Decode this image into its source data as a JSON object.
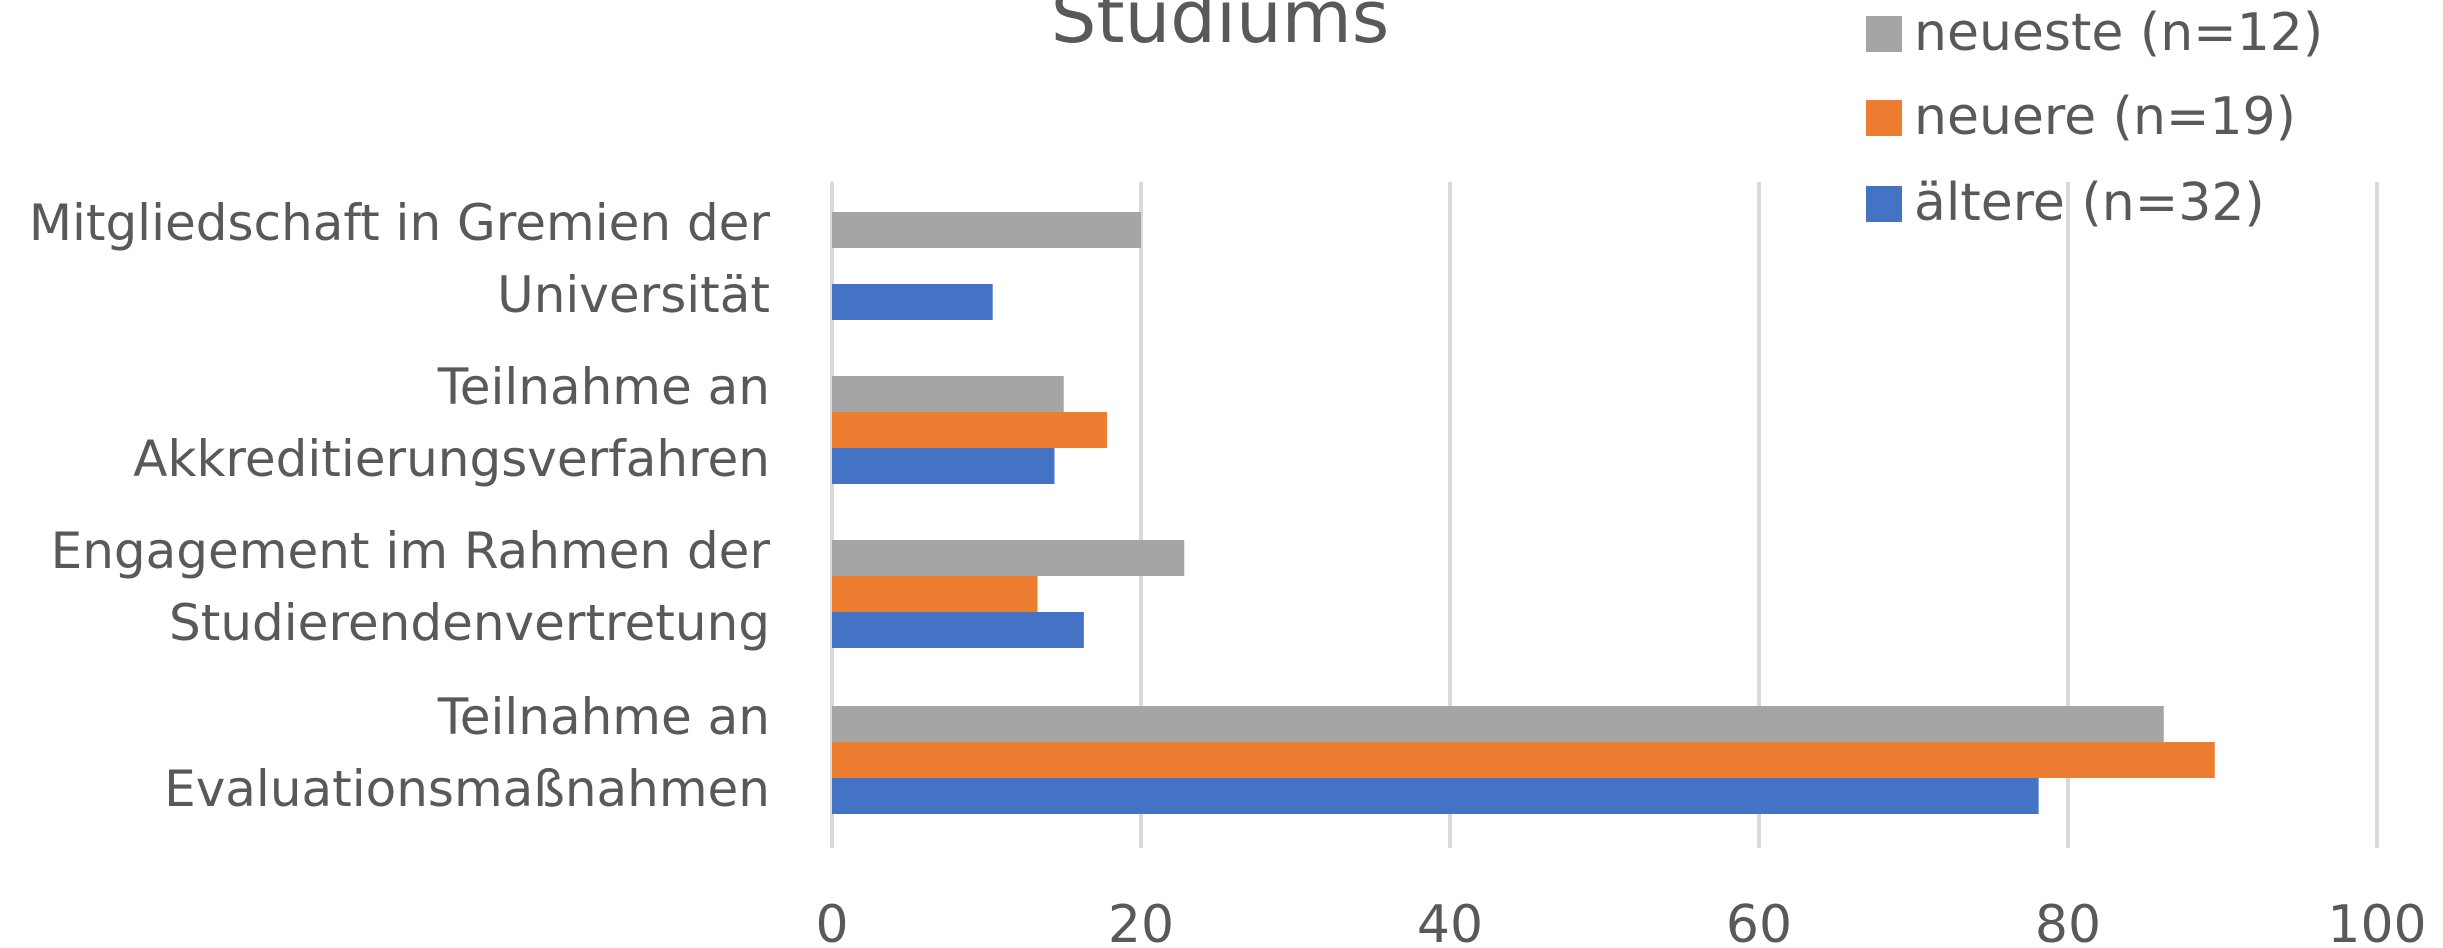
{
  "chart_data": {
    "type": "bar",
    "orientation": "horizontal",
    "title": "Studiums",
    "categories": [
      [
        "Mitgliedschaft in Gremien der",
        "Universität"
      ],
      [
        "Teilnahme an",
        "Akkreditierungsverfahren"
      ],
      [
        "Engagement im Rahmen der",
        "Studierendenvertretung"
      ],
      [
        "Teilnahme an",
        "Evaluationsmaßnahmen"
      ]
    ],
    "series": [
      {
        "name": "neueste (n=12)",
        "color": "#a5a5a5",
        "values": [
          20,
          15,
          22.8,
          86.2
        ]
      },
      {
        "name": "neuere (n=19)",
        "color": "#ed7d31",
        "values": [
          0,
          17.8,
          13.3,
          89.5
        ]
      },
      {
        "name": "ältere (n=32)",
        "color": "#4472c4",
        "values": [
          10.4,
          14.4,
          16.3,
          78.1
        ]
      }
    ],
    "xlim": [
      0,
      100
    ],
    "xticks": [
      "0",
      "20",
      "40",
      "60",
      "80",
      "100"
    ],
    "grid": true,
    "legend_position": "top-right"
  }
}
